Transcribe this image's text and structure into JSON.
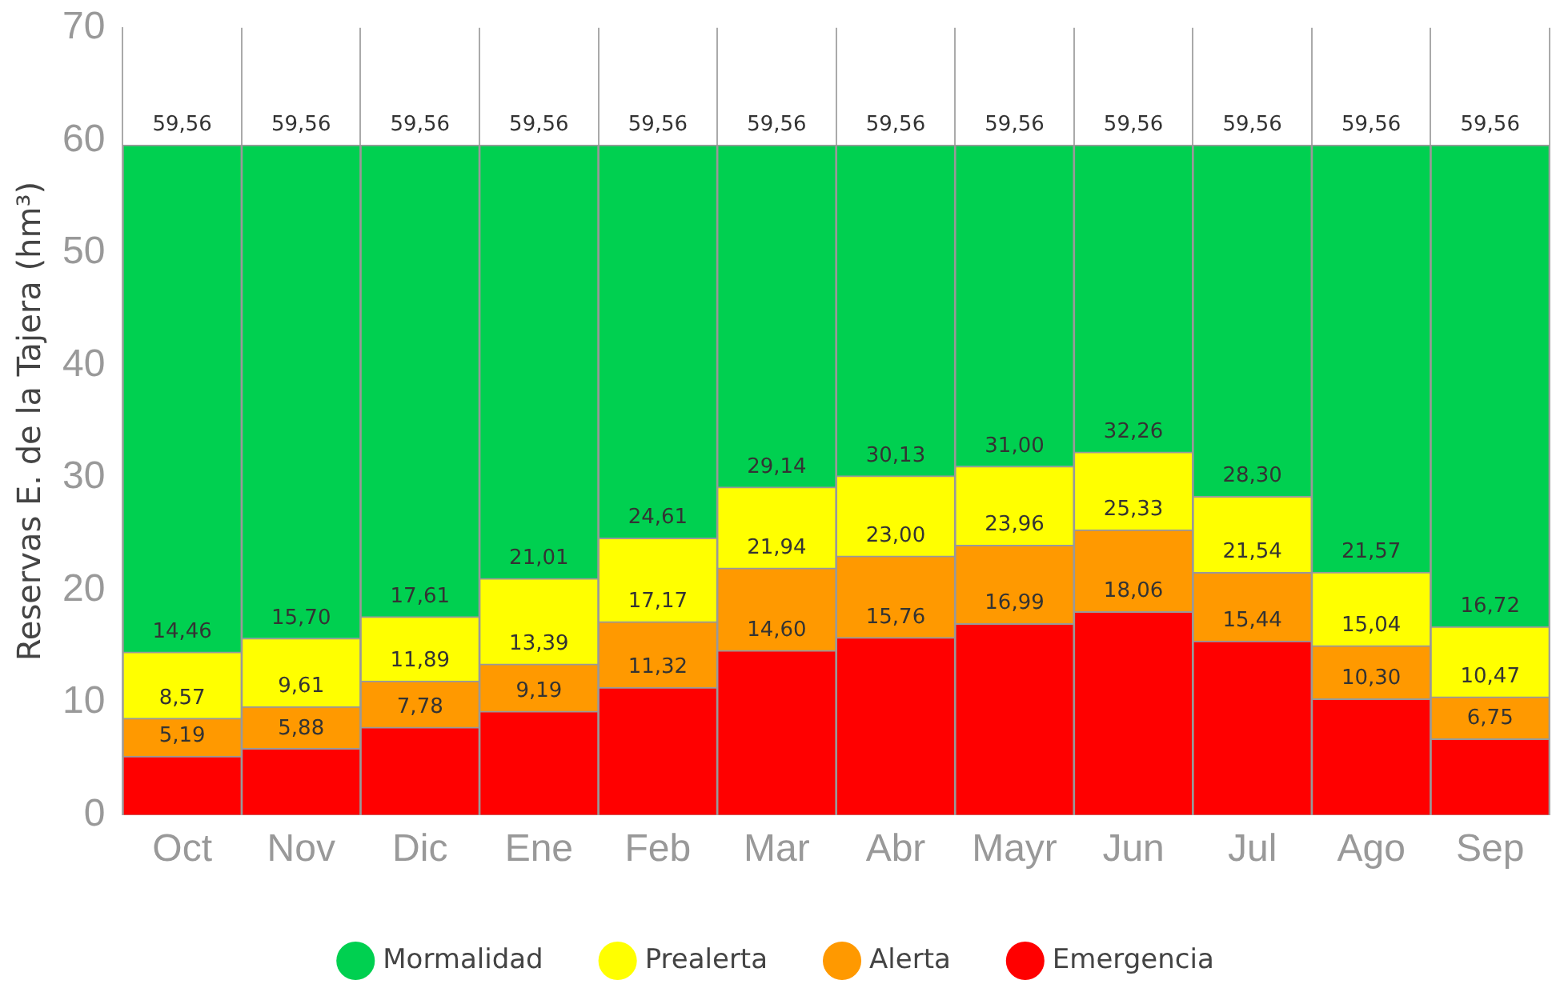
{
  "chart_data": {
    "type": "bar",
    "stacked": true,
    "ylabel": "Reservas E. de la Tajera (hm³)",
    "categories": [
      "Oct",
      "Nov",
      "Dic",
      "Ene",
      "Feb",
      "Mar",
      "Abr",
      "Mayr",
      "Jun",
      "Jul",
      "Ago",
      "Sep"
    ],
    "ylim": [
      0,
      70
    ],
    "yticks": [
      0,
      10,
      20,
      30,
      40,
      50,
      60,
      70
    ],
    "grid": "x",
    "legend": "bottom",
    "series": [
      {
        "name": "Emergencia",
        "color": "#ff0000",
        "values": [
          5.19,
          5.88,
          7.78,
          9.19,
          11.32,
          14.6,
          15.76,
          16.99,
          18.06,
          15.44,
          10.3,
          6.75
        ]
      },
      {
        "name": "Alerta",
        "color": "#ff9900",
        "values": [
          3.38,
          3.73,
          4.11,
          4.2,
          5.85,
          7.34,
          7.24,
          6.97,
          7.27,
          6.1,
          4.74,
          3.72
        ]
      },
      {
        "name": "Prealerta",
        "color": "#ffff00",
        "values": [
          5.89,
          6.09,
          5.72,
          7.62,
          7.44,
          7.2,
          7.13,
          7.04,
          6.93,
          6.76,
          6.53,
          6.25
        ]
      },
      {
        "name": "Mormalidad",
        "color": "#00d050",
        "values": [
          45.1,
          43.86,
          41.95,
          38.55,
          34.95,
          30.42,
          29.43,
          28.56,
          27.3,
          31.26,
          37.99,
          42.84
        ]
      }
    ],
    "annotations": [
      {
        "text": "5,19",
        "x": "Oct",
        "y": 5.19
      },
      {
        "text": "5,88",
        "x": "Nov",
        "y": 5.88
      },
      {
        "text": "7,78",
        "x": "Dic",
        "y": 7.78
      },
      {
        "text": "9,19",
        "x": "Ene",
        "y": 9.19
      },
      {
        "text": "11,32",
        "x": "Feb",
        "y": 11.32
      },
      {
        "text": "14,60",
        "x": "Mar",
        "y": 14.6
      },
      {
        "text": "15,76",
        "x": "Abr",
        "y": 15.76
      },
      {
        "text": "16,99",
        "x": "Mayr",
        "y": 16.99
      },
      {
        "text": "18,06",
        "x": "Jun",
        "y": 18.06
      },
      {
        "text": "15,44",
        "x": "Jul",
        "y": 15.44
      },
      {
        "text": "10,30",
        "x": "Ago",
        "y": 10.3
      },
      {
        "text": "6,75",
        "x": "Sep",
        "y": 6.75
      },
      {
        "text": "8,57",
        "x": "Oct",
        "y": 8.57
      },
      {
        "text": "9,61",
        "x": "Nov",
        "y": 9.61
      },
      {
        "text": "11,89",
        "x": "Dic",
        "y": 11.89
      },
      {
        "text": "13,39",
        "x": "Ene",
        "y": 13.39
      },
      {
        "text": "17,17",
        "x": "Feb",
        "y": 17.17
      },
      {
        "text": "21,94",
        "x": "Mar",
        "y": 21.94
      },
      {
        "text": "23,00",
        "x": "Abr",
        "y": 23.0
      },
      {
        "text": "23,96",
        "x": "Mayr",
        "y": 23.96
      },
      {
        "text": "25,33",
        "x": "Jun",
        "y": 25.33
      },
      {
        "text": "21,54",
        "x": "Jul",
        "y": 21.54
      },
      {
        "text": "15,04",
        "x": "Ago",
        "y": 15.04
      },
      {
        "text": "10,47",
        "x": "Sep",
        "y": 10.47
      },
      {
        "text": "14,46",
        "x": "Oct",
        "y": 14.46
      },
      {
        "text": "15,70",
        "x": "Nov",
        "y": 15.7
      },
      {
        "text": "17,61",
        "x": "Dic",
        "y": 17.61
      },
      {
        "text": "21,01",
        "x": "Ene",
        "y": 21.01
      },
      {
        "text": "24,61",
        "x": "Feb",
        "y": 24.61
      },
      {
        "text": "29,14",
        "x": "Mar",
        "y": 29.14
      },
      {
        "text": "30,13",
        "x": "Abr",
        "y": 30.13
      },
      {
        "text": "31,00",
        "x": "Mayr",
        "y": 31.0
      },
      {
        "text": "32,26",
        "x": "Jun",
        "y": 32.26
      },
      {
        "text": "28,30",
        "x": "Jul",
        "y": 28.3
      },
      {
        "text": "21,57",
        "x": "Ago",
        "y": 21.57
      },
      {
        "text": "16,72",
        "x": "Sep",
        "y": 16.72
      },
      {
        "text": "59,56",
        "x": "Oct",
        "y": 59.56
      },
      {
        "text": "59,56",
        "x": "Nov",
        "y": 59.56
      },
      {
        "text": "59,56",
        "x": "Dic",
        "y": 59.56
      },
      {
        "text": "59,56",
        "x": "Ene",
        "y": 59.56
      },
      {
        "text": "59,56",
        "x": "Feb",
        "y": 59.56
      },
      {
        "text": "59,56",
        "x": "Mar",
        "y": 59.56
      },
      {
        "text": "59,56",
        "x": "Abr",
        "y": 59.56
      },
      {
        "text": "59,56",
        "x": "Mayr",
        "y": 59.56
      },
      {
        "text": "59,56",
        "x": "Jun",
        "y": 59.56
      },
      {
        "text": "59,56",
        "x": "Jul",
        "y": 59.56
      },
      {
        "text": "59,56",
        "x": "Ago",
        "y": 59.56
      },
      {
        "text": "59,56",
        "x": "Sep",
        "y": 59.56
      }
    ]
  }
}
